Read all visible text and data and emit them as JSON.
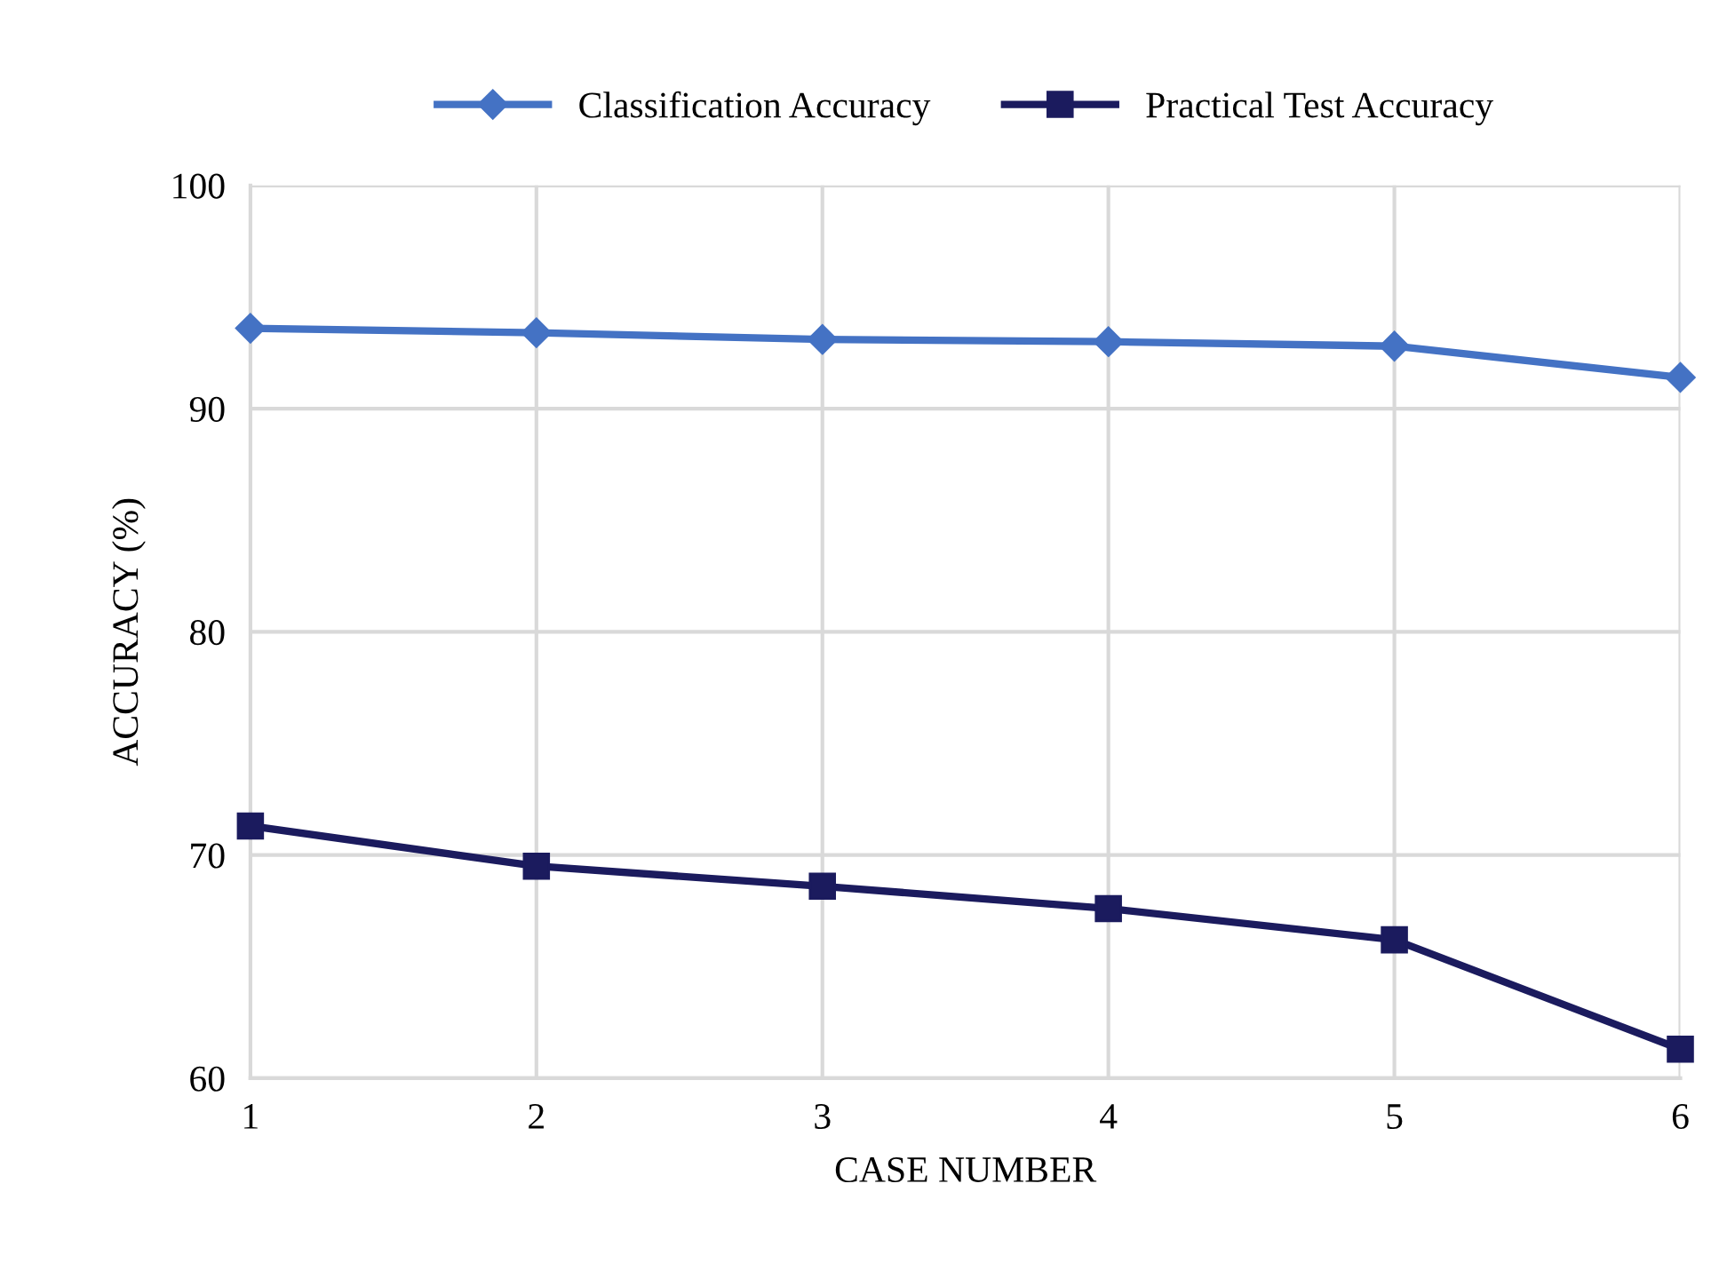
{
  "chart_data": {
    "type": "line",
    "xlabel": "CASE NUMBER",
    "ylabel": "ACCURACY (%)",
    "x": [
      1,
      2,
      3,
      4,
      5,
      6
    ],
    "series": [
      {
        "name": "Classification Accuracy",
        "color": "#4472c4",
        "marker": "diamond",
        "values": [
          93.6,
          93.4,
          93.1,
          93.0,
          92.8,
          91.4
        ]
      },
      {
        "name": "Practical Test Accuracy",
        "color": "#1b1b5e",
        "marker": "square",
        "values": [
          71.3,
          69.5,
          68.6,
          67.6,
          66.2,
          61.3
        ]
      }
    ],
    "xlim": [
      1,
      6
    ],
    "xticks": [
      1,
      2,
      3,
      4,
      5,
      6
    ],
    "ylim": [
      60,
      100
    ],
    "yticks": [
      60,
      70,
      80,
      90,
      100
    ],
    "grid": true,
    "legend": "top",
    "line_style": "solid"
  }
}
